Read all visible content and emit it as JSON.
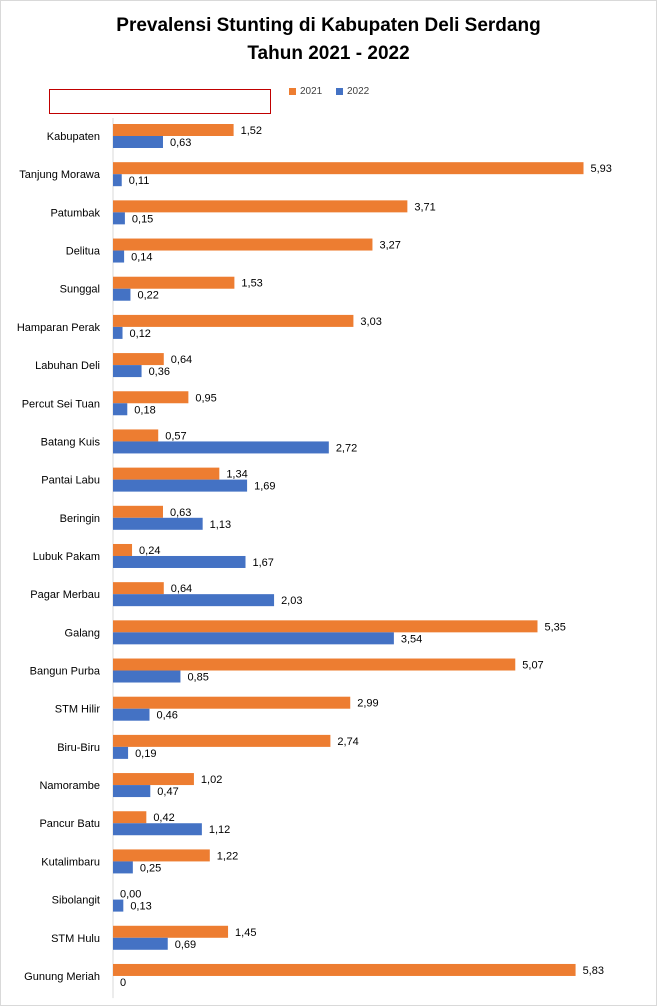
{
  "chart_data": {
    "type": "bar",
    "orientation": "horizontal",
    "title_line1": "Prevalensi Stunting di Kabupaten Deli Serdang",
    "title_line2": "Tahun 2021 - 2022",
    "legend_position": "top-right",
    "grid": false,
    "xlim": [
      0,
      6.1
    ],
    "categories": [
      "Kabupaten",
      "Tanjung Morawa",
      "Patumbak",
      "Delitua",
      "Sunggal",
      "Hamparan Perak",
      "Labuhan Deli",
      "Percut Sei Tuan",
      "Batang Kuis",
      "Pantai Labu",
      "Beringin",
      "Lubuk Pakam",
      "Pagar Merbau",
      "Galang",
      "Bangun Purba",
      "STM Hilir",
      "Biru-Biru",
      "Namorambe",
      "Pancur Batu",
      "Kutalimbaru",
      "Sibolangit",
      "STM Hulu",
      "Gunung Meriah"
    ],
    "series": [
      {
        "name": "2021",
        "color": "#ed7d31",
        "values": [
          1.52,
          5.93,
          3.71,
          3.27,
          1.53,
          3.03,
          0.64,
          0.95,
          0.57,
          1.34,
          0.63,
          0.24,
          0.64,
          5.35,
          5.07,
          2.99,
          2.74,
          1.02,
          0.42,
          1.22,
          0.0,
          1.45,
          5.83
        ],
        "labels": [
          "1,52",
          "5,93",
          "3,71",
          "3,27",
          "1,53",
          "3,03",
          "0,64",
          "0,95",
          "0,57",
          "1,34",
          "0,63",
          "0,24",
          "0,64",
          "5,35",
          "5,07",
          "2,99",
          "2,74",
          "1,02",
          "0,42",
          "1,22",
          "0,00",
          "1,45",
          "5,83"
        ]
      },
      {
        "name": "2022",
        "color": "#4472c4",
        "values": [
          0.63,
          0.11,
          0.15,
          0.14,
          0.22,
          0.12,
          0.36,
          0.18,
          2.72,
          1.69,
          1.13,
          1.67,
          2.03,
          3.54,
          0.85,
          0.46,
          0.19,
          0.47,
          1.12,
          0.25,
          0.13,
          0.69,
          0
        ],
        "labels": [
          "0,63",
          "0,11",
          "0,15",
          "0,14",
          "0,22",
          "0,12",
          "0,36",
          "0,18",
          "2,72",
          "1,69",
          "1,13",
          "1,67",
          "2,03",
          "3,54",
          "0,85",
          "0,46",
          "0,19",
          "0,47",
          "1,12",
          "0,25",
          "0,13",
          "0,69",
          "0"
        ]
      }
    ]
  }
}
